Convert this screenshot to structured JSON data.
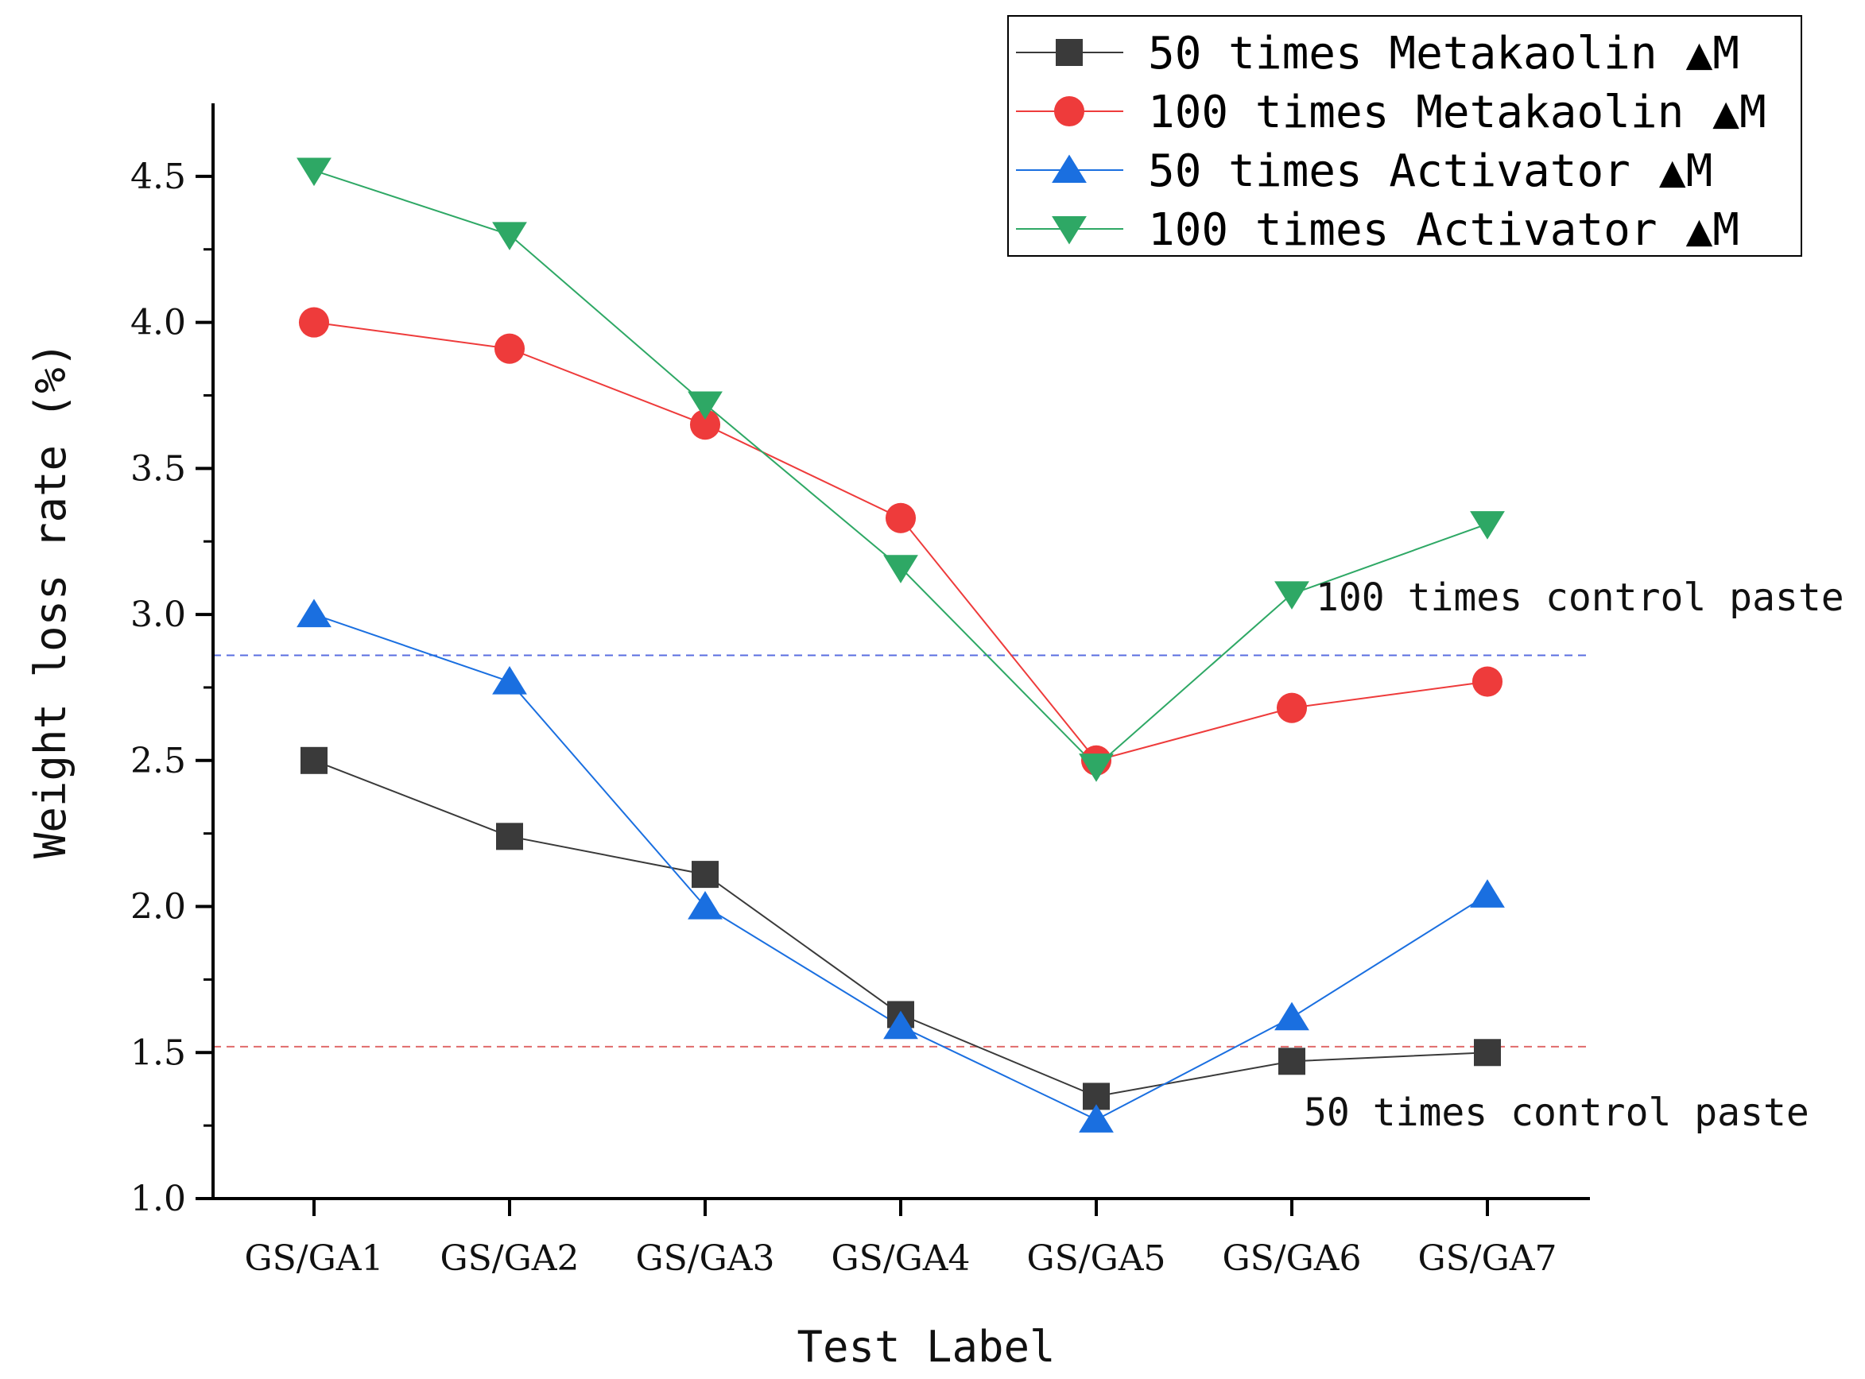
{
  "chart_data": {
    "type": "line",
    "xlabel": "Test Label",
    "ylabel": "Weight loss rate (%)",
    "categories": [
      "GS/GA1",
      "GS/GA2",
      "GS/GA3",
      "GS/GA4",
      "GS/GA5",
      "GS/GA6",
      "GS/GA7"
    ],
    "ylim": [
      1.0,
      4.75
    ],
    "yticks": [
      "1.0",
      "1.5",
      "2.0",
      "2.5",
      "3.0",
      "3.5",
      "4.0",
      "4.5"
    ],
    "legend_position": "top-right",
    "series": [
      {
        "name": "50 times Metakaolin",
        "marker": "square",
        "color": "#3a3a3a",
        "values": [
          2.5,
          2.24,
          2.11,
          1.63,
          1.35,
          1.47,
          1.5
        ]
      },
      {
        "name": "100 times Metakaolin",
        "marker": "circle",
        "color": "#ee3b3b",
        "values": [
          4.0,
          3.91,
          3.65,
          3.33,
          2.5,
          2.68,
          2.77
        ]
      },
      {
        "name": "50 times Activator",
        "marker": "triangle-up",
        "color": "#1a6fe0",
        "values": [
          3.0,
          2.77,
          2.0,
          1.59,
          1.27,
          1.62,
          2.04
        ]
      },
      {
        "name": "100 times Activator",
        "marker": "triangle-down",
        "color": "#2ea865",
        "values": [
          4.52,
          4.3,
          3.72,
          3.16,
          2.48,
          3.07,
          3.31
        ]
      }
    ],
    "legend_suffix": "▲M",
    "reference_lines": [
      {
        "label": "100 times control paste",
        "value": 2.86,
        "color": "#5a6ee0"
      },
      {
        "label": "50 times control paste",
        "value": 1.52,
        "color": "#e06a6a"
      }
    ]
  }
}
